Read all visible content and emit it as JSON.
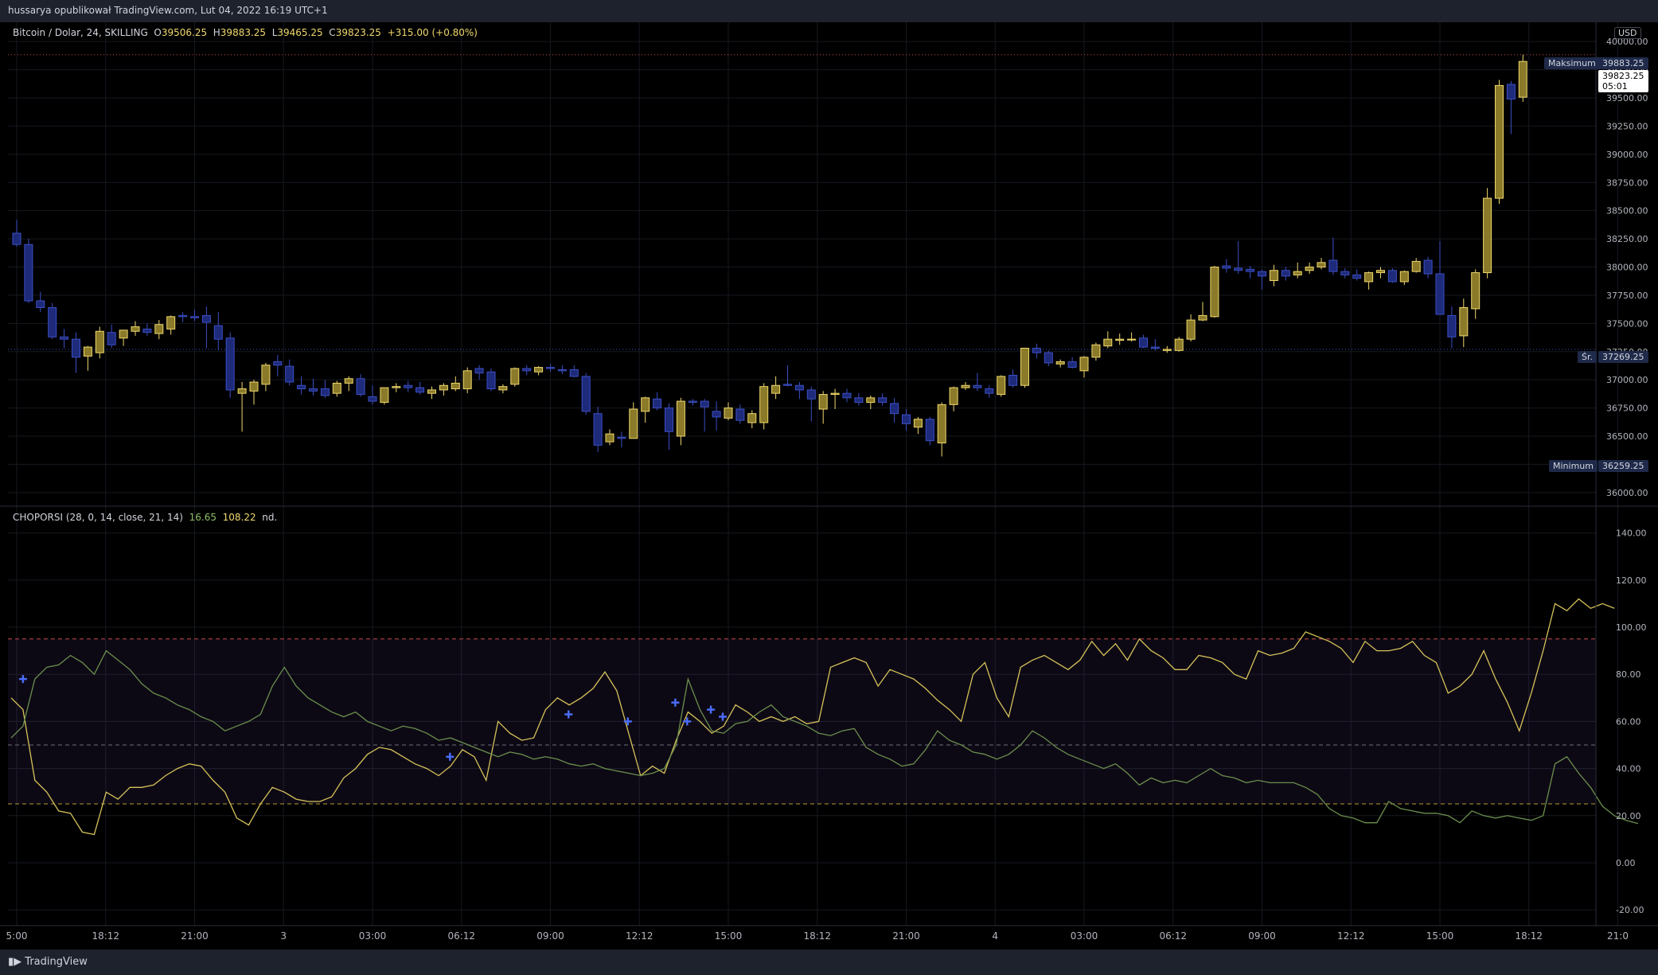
{
  "header": {
    "publish_text": "hussarya opublikował TradingView.com, Lut 04, 2022 16:19 UTC+1"
  },
  "legend": {
    "symbol": "Bitcoin / Dolar, 24, SKILLING",
    "o_label": "O",
    "o_value": "39506.25",
    "h_label": "H",
    "h_value": "39883.25",
    "l_label": "L",
    "l_value": "39465.25",
    "c_label": "C",
    "c_value": "39823.25",
    "change": "+315.00 (+0.80%)"
  },
  "indicator": {
    "name": "CHOPORSI (28, 0, 14, close, 21, 14)",
    "value1": "16.65",
    "value2": "108.22",
    "value3": "nd."
  },
  "currency": "USD",
  "price_tags": {
    "max_label": "Maksimum",
    "max_value": "39883.25",
    "last_value": "39823.25",
    "countdown": "05:01",
    "avg_label": "Śr.",
    "avg_value": "37269.25",
    "min_label": "Minimum",
    "min_value": "36259.25"
  },
  "brand": "TradingView",
  "colors": {
    "up": "#f0d86c",
    "down": "#3b4fc4",
    "osc_yellow": "#d6c25a",
    "osc_green": "#6b8f4e",
    "band_red": "#c94a4a",
    "band_yellow": "#b89a3a",
    "marker": "#4a6cf7"
  },
  "chart_data": [
    {
      "type": "candlestick",
      "title": "Bitcoin / Dolar, 24, SKILLING",
      "ylim": [
        35900,
        40100
      ],
      "y_ticks": [
        "36000.00",
        "36250.00",
        "36500.00",
        "36750.00",
        "37000.00",
        "37250.00",
        "37500.00",
        "37750.00",
        "38000.00",
        "38250.00",
        "38500.00",
        "38750.00",
        "39000.00",
        "39250.00",
        "39500.00",
        "39750.00",
        "40000.00"
      ],
      "x_ticks": [
        {
          "label": "5:00",
          "i": 0
        },
        {
          "label": "18:12",
          "i": 7.5
        },
        {
          "label": "21:00",
          "i": 15
        },
        {
          "label": "3",
          "i": 22.5
        },
        {
          "label": "03:00",
          "i": 30
        },
        {
          "label": "06:12",
          "i": 37.5
        },
        {
          "label": "09:00",
          "i": 45
        },
        {
          "label": "12:12",
          "i": 52.5
        },
        {
          "label": "15:00",
          "i": 60
        },
        {
          "label": "18:12",
          "i": 67.5
        },
        {
          "label": "21:00",
          "i": 75
        },
        {
          "label": "4",
          "i": 82.5
        },
        {
          "label": "03:00",
          "i": 90
        },
        {
          "label": "06:12",
          "i": 97.5
        },
        {
          "label": "09:00",
          "i": 105
        },
        {
          "label": "12:12",
          "i": 112.5
        },
        {
          "label": "15:00",
          "i": 120
        },
        {
          "label": "18:12",
          "i": 127.5
        },
        {
          "label": "21:0",
          "i": 135
        }
      ],
      "ohlc": [
        [
          38300,
          38420,
          38180,
          38200
        ],
        [
          38200,
          38250,
          37680,
          37700
        ],
        [
          37700,
          37780,
          37600,
          37640
        ],
        [
          37640,
          37680,
          37360,
          37380
        ],
        [
          37380,
          37450,
          37280,
          37360
        ],
        [
          37360,
          37420,
          37060,
          37200
        ],
        [
          37210,
          37300,
          37080,
          37290
        ],
        [
          37240,
          37470,
          37190,
          37430
        ],
        [
          37420,
          37490,
          37280,
          37310
        ],
        [
          37370,
          37440,
          37300,
          37440
        ],
        [
          37430,
          37520,
          37390,
          37470
        ],
        [
          37450,
          37500,
          37390,
          37420
        ],
        [
          37410,
          37530,
          37360,
          37490
        ],
        [
          37450,
          37570,
          37400,
          37560
        ],
        [
          37570,
          37600,
          37510,
          37560
        ],
        [
          37560,
          37620,
          37520,
          37550
        ],
        [
          37570,
          37650,
          37280,
          37510
        ],
        [
          37480,
          37600,
          37260,
          37360
        ],
        [
          37370,
          37420,
          36840,
          36910
        ],
        [
          36880,
          36980,
          36540,
          36920
        ],
        [
          36900,
          37000,
          36780,
          36980
        ],
        [
          36960,
          37150,
          36900,
          37130
        ],
        [
          37160,
          37220,
          37030,
          37130
        ],
        [
          37120,
          37180,
          36950,
          36980
        ],
        [
          36950,
          37030,
          36870,
          36920
        ],
        [
          36920,
          37010,
          36860,
          36900
        ],
        [
          36920,
          37000,
          36840,
          36860
        ],
        [
          36880,
          36990,
          36850,
          36970
        ],
        [
          36970,
          37030,
          36900,
          37010
        ],
        [
          37010,
          37050,
          36850,
          36870
        ],
        [
          36850,
          36950,
          36780,
          36810
        ],
        [
          36800,
          36930,
          36780,
          36930
        ],
        [
          36930,
          36970,
          36890,
          36940
        ],
        [
          36950,
          36990,
          36890,
          36930
        ],
        [
          36930,
          36980,
          36870,
          36890
        ],
        [
          36880,
          36940,
          36830,
          36910
        ],
        [
          36910,
          36970,
          36860,
          36950
        ],
        [
          36920,
          37030,
          36900,
          36970
        ],
        [
          36920,
          37110,
          36880,
          37080
        ],
        [
          37100,
          37130,
          37000,
          37060
        ],
        [
          37070,
          37100,
          36900,
          36920
        ],
        [
          36910,
          36960,
          36880,
          36940
        ],
        [
          36960,
          37110,
          36940,
          37100
        ],
        [
          37100,
          37130,
          37040,
          37080
        ],
        [
          37070,
          37120,
          37040,
          37110
        ],
        [
          37110,
          37140,
          37070,
          37100
        ],
        [
          37090,
          37130,
          37050,
          37080
        ],
        [
          37090,
          37130,
          37020,
          37030
        ],
        [
          37030,
          37060,
          36690,
          36720
        ],
        [
          36700,
          36760,
          36360,
          36420
        ],
        [
          36450,
          36560,
          36420,
          36520
        ],
        [
          36490,
          36540,
          36400,
          36480
        ],
        [
          36480,
          36800,
          36480,
          36740
        ],
        [
          36720,
          36850,
          36620,
          36840
        ],
        [
          36830,
          36890,
          36730,
          36750
        ],
        [
          36750,
          36790,
          36380,
          36540
        ],
        [
          36500,
          36840,
          36420,
          36810
        ],
        [
          36810,
          36830,
          36770,
          36800
        ],
        [
          36810,
          36830,
          36540,
          36760
        ],
        [
          36720,
          36810,
          36550,
          36670
        ],
        [
          36660,
          36800,
          36640,
          36750
        ],
        [
          36740,
          36780,
          36610,
          36640
        ],
        [
          36620,
          36730,
          36570,
          36700
        ],
        [
          36620,
          36970,
          36560,
          36940
        ],
        [
          36880,
          37030,
          36830,
          36950
        ],
        [
          36960,
          37130,
          36940,
          36950
        ],
        [
          36950,
          36980,
          36830,
          36910
        ],
        [
          36910,
          36940,
          36630,
          36830
        ],
        [
          36740,
          36900,
          36610,
          36870
        ],
        [
          36870,
          36920,
          36740,
          36880
        ],
        [
          36880,
          36920,
          36800,
          36840
        ],
        [
          36840,
          36880,
          36770,
          36800
        ],
        [
          36800,
          36860,
          36740,
          36840
        ],
        [
          36840,
          36880,
          36770,
          36800
        ],
        [
          36790,
          36840,
          36620,
          36700
        ],
        [
          36690,
          36740,
          36550,
          36610
        ],
        [
          36580,
          36670,
          36520,
          36650
        ],
        [
          36650,
          36670,
          36420,
          36460
        ],
        [
          36440,
          36800,
          36320,
          36780
        ],
        [
          36780,
          36940,
          36720,
          36930
        ],
        [
          36930,
          36980,
          36910,
          36950
        ],
        [
          36950,
          37060,
          36900,
          36930
        ],
        [
          36920,
          36950,
          36840,
          36880
        ],
        [
          36870,
          37040,
          36850,
          37030
        ],
        [
          37040,
          37090,
          36930,
          36950
        ],
        [
          36950,
          37280,
          36930,
          37280
        ],
        [
          37280,
          37320,
          37190,
          37240
        ],
        [
          37240,
          37260,
          37120,
          37150
        ],
        [
          37140,
          37180,
          37110,
          37160
        ],
        [
          37160,
          37200,
          37100,
          37110
        ],
        [
          37080,
          37210,
          37020,
          37200
        ],
        [
          37200,
          37330,
          37170,
          37310
        ],
        [
          37300,
          37430,
          37280,
          37360
        ],
        [
          37350,
          37410,
          37310,
          37360
        ],
        [
          37360,
          37420,
          37340,
          37360
        ],
        [
          37370,
          37400,
          37280,
          37290
        ],
        [
          37290,
          37360,
          37260,
          37280
        ],
        [
          37260,
          37300,
          37240,
          37270
        ],
        [
          37260,
          37380,
          37250,
          37360
        ],
        [
          37360,
          37580,
          37340,
          37530
        ],
        [
          37530,
          37690,
          37520,
          37570
        ],
        [
          37560,
          38010,
          37550,
          38000
        ],
        [
          38010,
          38070,
          37950,
          37990
        ],
        [
          37990,
          38230,
          37940,
          37970
        ],
        [
          37980,
          38010,
          37900,
          37960
        ],
        [
          37960,
          37980,
          37800,
          37920
        ],
        [
          37880,
          38020,
          37830,
          37970
        ],
        [
          37970,
          38000,
          37880,
          37920
        ],
        [
          37930,
          38040,
          37900,
          37960
        ],
        [
          37970,
          38040,
          37940,
          38000
        ],
        [
          38000,
          38080,
          37980,
          38040
        ],
        [
          38060,
          38260,
          37930,
          37960
        ],
        [
          37960,
          37990,
          37900,
          37930
        ],
        [
          37930,
          37980,
          37880,
          37900
        ],
        [
          37870,
          37960,
          37800,
          37950
        ],
        [
          37950,
          38000,
          37900,
          37970
        ],
        [
          37970,
          37990,
          37860,
          37870
        ],
        [
          37870,
          37970,
          37840,
          37960
        ],
        [
          37960,
          38080,
          37950,
          38050
        ],
        [
          38060,
          38090,
          37900,
          37940
        ],
        [
          37940,
          38230,
          37580,
          37580
        ],
        [
          37570,
          37650,
          37280,
          37380
        ],
        [
          37390,
          37720,
          37290,
          37640
        ],
        [
          37630,
          37980,
          37540,
          37950
        ],
        [
          37950,
          38700,
          37900,
          38610
        ],
        [
          38610,
          39660,
          38560,
          39610
        ],
        [
          39620,
          39650,
          39180,
          39490
        ],
        [
          39506.25,
          39883.25,
          39465.25,
          39823.25
        ]
      ],
      "max": 39883.25,
      "last": 39823.25,
      "avg": 37269.25,
      "min": 36259.25
    },
    {
      "type": "line",
      "title": "CHOPORSI (28, 0, 14, close, 21, 14)",
      "ylim": [
        -25,
        150
      ],
      "y_ticks": [
        "-20.00",
        "0.00",
        "20.00",
        "40.00",
        "60.00",
        "80.00",
        "100.00",
        "120.00",
        "140.00"
      ],
      "bands": {
        "upper": 95,
        "middle": 50,
        "lower": 25
      },
      "series": [
        {
          "name": "choppiness",
          "color": "#d6c25a",
          "values": [
            70,
            65,
            35,
            30,
            22,
            21,
            13,
            12,
            30,
            27,
            32,
            32,
            33,
            37,
            40,
            42,
            41,
            35,
            30,
            19,
            16,
            25,
            32,
            30,
            27,
            26,
            26,
            28,
            36,
            40,
            46,
            49,
            48,
            45,
            42,
            40,
            37,
            41,
            48,
            45,
            35,
            60,
            55,
            52,
            53,
            65,
            70,
            67,
            70,
            74,
            81,
            73,
            55,
            37,
            41,
            38,
            52,
            64,
            60,
            55,
            58,
            67,
            64,
            60,
            62,
            60,
            62,
            59,
            60,
            83,
            85,
            87,
            85,
            75,
            82,
            80,
            78,
            74,
            69,
            65,
            60,
            80,
            85,
            70,
            62,
            83,
            86,
            88,
            85,
            82,
            86,
            94,
            88,
            93,
            86,
            95,
            90,
            87,
            82,
            82,
            88,
            87,
            85,
            80,
            78,
            90,
            88,
            89,
            91,
            98,
            96,
            94,
            91,
            85,
            94,
            90,
            90,
            91,
            94,
            88,
            85,
            72,
            75,
            80,
            90,
            78,
            68,
            56,
            72,
            90,
            110,
            107,
            112,
            108,
            110,
            108
          ]
        },
        {
          "name": "rsi",
          "color": "#6b8f4e",
          "values": [
            53,
            58,
            78,
            83,
            84,
            88,
            85,
            80,
            90,
            86,
            82,
            76,
            72,
            70,
            67,
            65,
            62,
            60,
            56,
            58,
            60,
            63,
            75,
            83,
            75,
            70,
            67,
            64,
            62,
            64,
            60,
            58,
            56,
            58,
            57,
            55,
            52,
            53,
            51,
            49,
            47,
            45,
            47,
            46,
            44,
            45,
            44,
            42,
            41,
            42,
            40,
            39,
            38,
            37,
            38,
            40,
            50,
            78,
            65,
            56,
            55,
            59,
            60,
            64,
            67,
            62,
            60,
            58,
            55,
            54,
            56,
            57,
            49,
            46,
            44,
            41,
            42,
            48,
            56,
            52,
            50,
            47,
            46,
            44,
            46,
            50,
            56,
            53,
            49,
            46,
            44,
            42,
            40,
            42,
            38,
            33,
            36,
            34,
            35,
            34,
            37,
            40,
            37,
            36,
            34,
            35,
            34,
            34,
            34,
            32,
            29,
            23,
            20,
            19,
            17,
            17,
            26,
            23,
            22,
            21,
            21,
            20,
            17,
            22,
            20,
            19,
            20,
            19,
            18,
            20,
            42,
            45,
            38,
            32,
            24,
            20,
            18,
            16.65
          ]
        }
      ],
      "markers": [
        {
          "i": 1,
          "value": 78
        },
        {
          "i": 37,
          "value": 45
        },
        {
          "i": 47,
          "value": 63
        },
        {
          "i": 52,
          "value": 60
        },
        {
          "i": 56,
          "value": 68
        },
        {
          "i": 57,
          "value": 60
        },
        {
          "i": 59,
          "value": 65
        },
        {
          "i": 60,
          "value": 62
        }
      ]
    }
  ]
}
